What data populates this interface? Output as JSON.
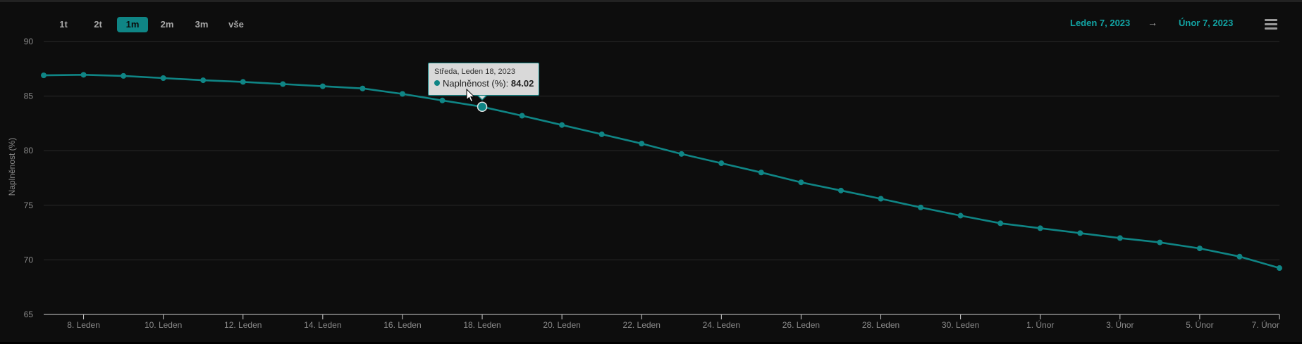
{
  "toolbar": {
    "range_buttons": [
      {
        "label": "1t",
        "active": false
      },
      {
        "label": "2t",
        "active": false
      },
      {
        "label": "1m",
        "active": true
      },
      {
        "label": "2m",
        "active": false
      },
      {
        "label": "3m",
        "active": false
      },
      {
        "label": "vše",
        "active": false
      }
    ],
    "date_from": "Leden 7, 2023",
    "date_arrow": "→",
    "date_to": "Únor 7, 2023",
    "menu_icon": "hamburger-menu-icon"
  },
  "tooltip": {
    "date": "Středa, Leden 18, 2023",
    "series_label": "Naplněnost (%): ",
    "value": "84.02"
  },
  "colors": {
    "background": "#0d0d0d",
    "series": "#0f8585",
    "accent_text": "#12a3a3",
    "grid": "#2a2a2a",
    "axis_text": "#8a8a8a"
  },
  "chart_data": {
    "type": "line",
    "ylabel": "Naplněnost (%)",
    "ylim": [
      65,
      90
    ],
    "yticks": [
      65,
      70,
      75,
      80,
      85,
      90
    ],
    "x_start": "2023-01-07",
    "x_end": "2023-02-07",
    "xticks": [
      {
        "date": "2023-01-08",
        "label": "8. Leden"
      },
      {
        "date": "2023-01-10",
        "label": "10. Leden"
      },
      {
        "date": "2023-01-12",
        "label": "12. Leden"
      },
      {
        "date": "2023-01-14",
        "label": "14. Leden"
      },
      {
        "date": "2023-01-16",
        "label": "16. Leden"
      },
      {
        "date": "2023-01-18",
        "label": "18. Leden"
      },
      {
        "date": "2023-01-20",
        "label": "20. Leden"
      },
      {
        "date": "2023-01-22",
        "label": "22. Leden"
      },
      {
        "date": "2023-01-24",
        "label": "24. Leden"
      },
      {
        "date": "2023-01-26",
        "label": "26. Leden"
      },
      {
        "date": "2023-01-28",
        "label": "28. Leden"
      },
      {
        "date": "2023-01-30",
        "label": "30. Leden"
      },
      {
        "date": "2023-02-01",
        "label": "1. Únor"
      },
      {
        "date": "2023-02-03",
        "label": "3. Únor"
      },
      {
        "date": "2023-02-05",
        "label": "5. Únor"
      },
      {
        "date": "2023-02-07",
        "label": "7. Únor"
      }
    ],
    "grid": true,
    "legend": "none",
    "series": [
      {
        "name": "Naplněnost (%)",
        "x": [
          "2023-01-07",
          "2023-01-08",
          "2023-01-09",
          "2023-01-10",
          "2023-01-11",
          "2023-01-12",
          "2023-01-13",
          "2023-01-14",
          "2023-01-15",
          "2023-01-16",
          "2023-01-17",
          "2023-01-18",
          "2023-01-19",
          "2023-01-20",
          "2023-01-21",
          "2023-01-22",
          "2023-01-23",
          "2023-01-24",
          "2023-01-25",
          "2023-01-26",
          "2023-01-27",
          "2023-01-28",
          "2023-01-29",
          "2023-01-30",
          "2023-01-31",
          "2023-02-01",
          "2023-02-02",
          "2023-02-03",
          "2023-02-04",
          "2023-02-05",
          "2023-02-06",
          "2023-02-07"
        ],
        "values": [
          86.9,
          86.95,
          86.85,
          86.65,
          86.45,
          86.3,
          86.1,
          85.9,
          85.7,
          85.2,
          84.6,
          84.02,
          83.2,
          82.35,
          81.5,
          80.65,
          79.7,
          78.85,
          78.0,
          77.1,
          76.35,
          75.6,
          74.8,
          74.05,
          73.35,
          72.9,
          72.45,
          72.0,
          71.6,
          71.05,
          70.3,
          69.25
        ]
      }
    ],
    "highlighted": {
      "date": "2023-01-18",
      "value": 84.02
    }
  }
}
